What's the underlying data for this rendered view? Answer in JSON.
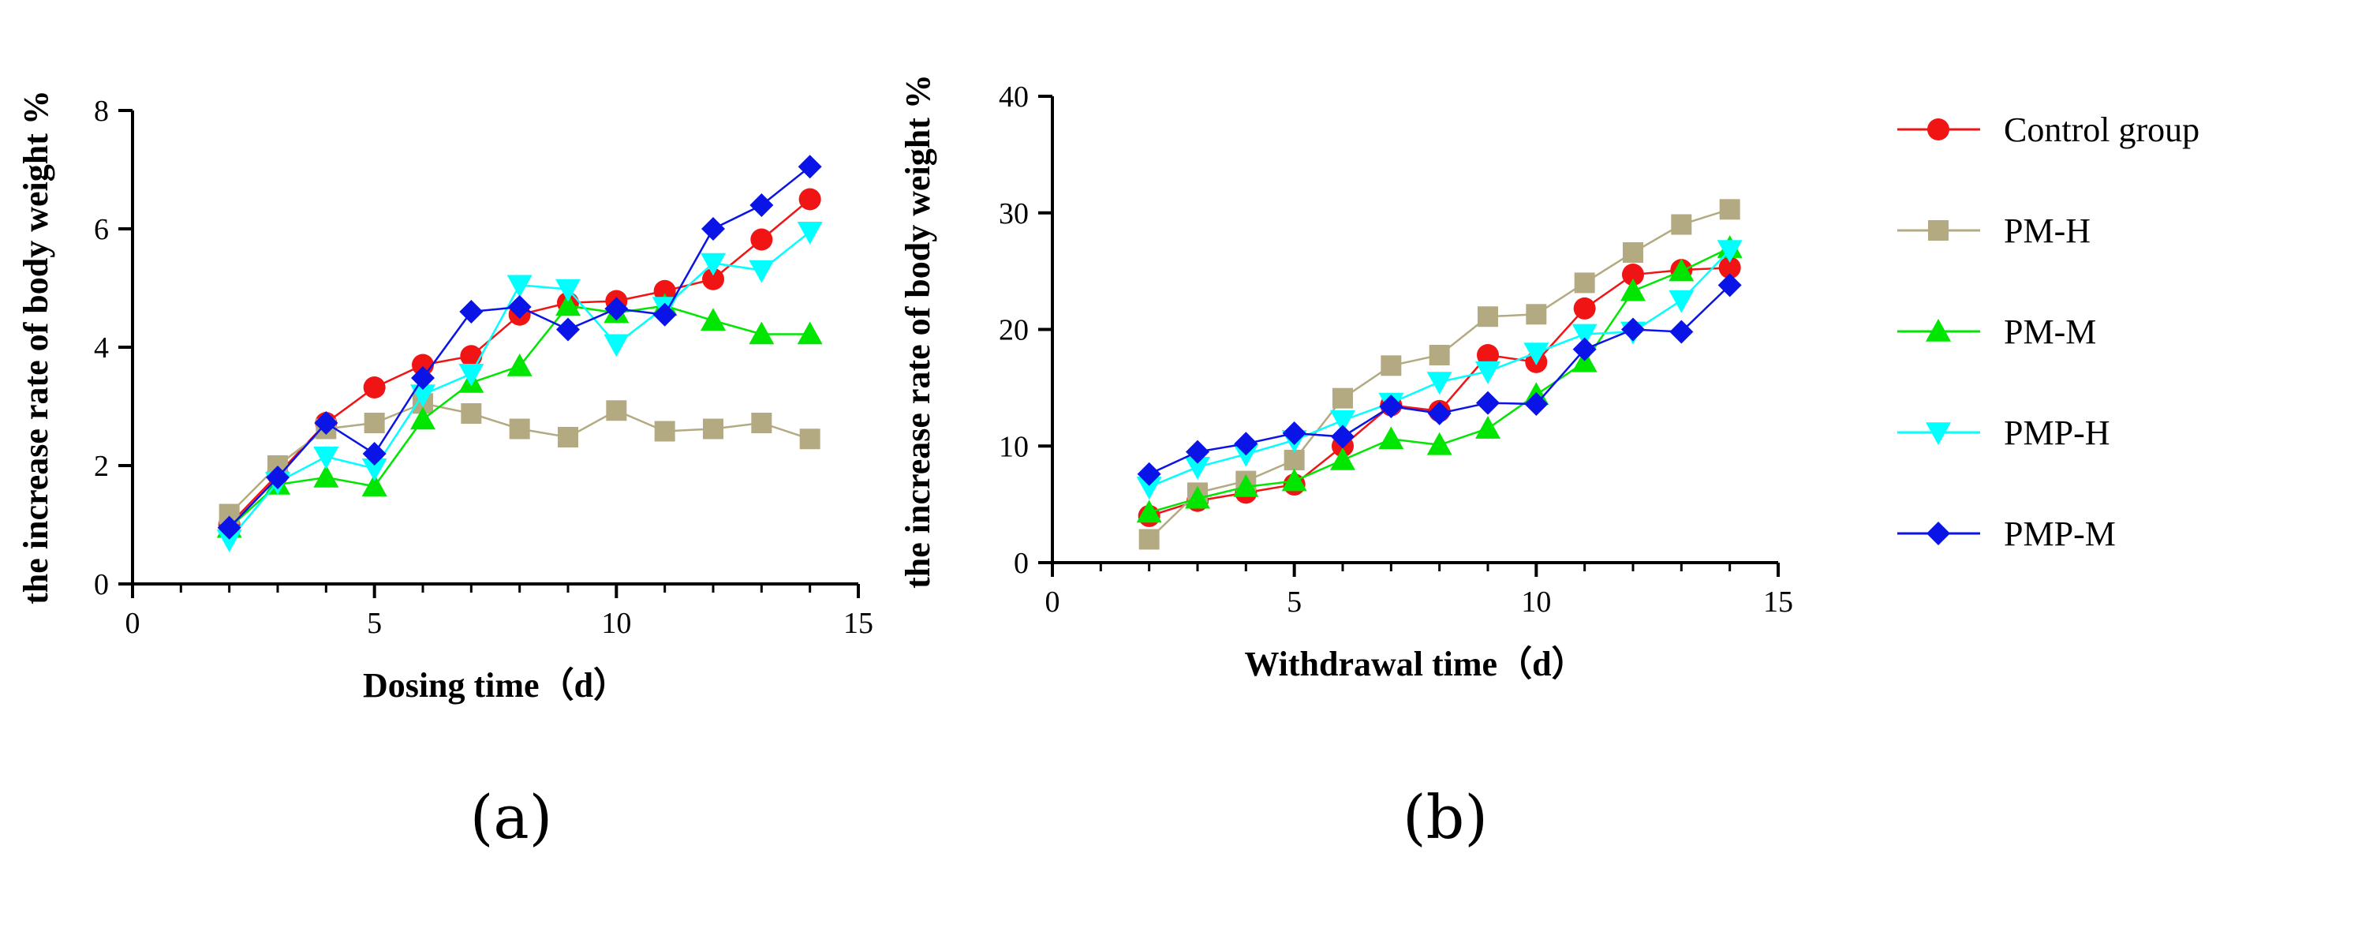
{
  "colors": {
    "control": "#f01414",
    "pmh": "#b4aa82",
    "pmm": "#00e600",
    "pmph": "#00ffff",
    "pmpm": "#0a14e6"
  },
  "legend": [
    {
      "key": "control",
      "label": "Control group",
      "marker": "circle"
    },
    {
      "key": "pmh",
      "label": "PM-H",
      "marker": "square"
    },
    {
      "key": "pmm",
      "label": "PM-M",
      "marker": "triangle-up"
    },
    {
      "key": "pmph",
      "label": "PMP-H",
      "marker": "triangle-down"
    },
    {
      "key": "pmpm",
      "label": "PMP-M",
      "marker": "diamond"
    }
  ],
  "chart_data": [
    {
      "type": "line",
      "panel_label": "(a)",
      "xlabel": "Dosing time（d）",
      "ylabel": "the increase rate of body weight %",
      "xlim": [
        0,
        15
      ],
      "ylim": [
        0,
        8
      ],
      "xticks": [
        "0",
        "5",
        "10",
        "15"
      ],
      "yticks": [
        "0",
        "2",
        "4",
        "6",
        "8"
      ],
      "x": [
        2,
        3,
        4,
        5,
        6,
        7,
        8,
        9,
        10,
        11,
        12,
        13,
        14
      ],
      "series": [
        {
          "key": "control",
          "name": "Control group",
          "values": [
            1.0,
            1.85,
            2.72,
            3.32,
            3.7,
            3.85,
            4.55,
            4.75,
            4.78,
            4.95,
            5.15,
            5.82,
            6.5
          ]
        },
        {
          "key": "pmh",
          "name": "PM-H",
          "values": [
            1.18,
            2.0,
            2.62,
            2.72,
            3.05,
            2.88,
            2.62,
            2.48,
            2.93,
            2.58,
            2.62,
            2.72,
            2.45
          ]
        },
        {
          "key": "pmm",
          "name": "PM-M",
          "values": [
            0.95,
            1.68,
            1.8,
            1.65,
            2.78,
            3.4,
            3.68,
            4.7,
            4.58,
            4.7,
            4.45,
            4.22,
            4.22
          ]
        },
        {
          "key": "pmph",
          "name": "PMP-H",
          "values": [
            0.75,
            1.72,
            2.15,
            1.95,
            3.2,
            3.55,
            5.05,
            4.98,
            4.05,
            4.68,
            5.42,
            5.3,
            5.95
          ]
        },
        {
          "key": "pmpm",
          "name": "PMP-M",
          "values": [
            0.95,
            1.8,
            2.72,
            2.2,
            3.48,
            4.6,
            4.68,
            4.3,
            4.65,
            4.55,
            6.0,
            6.4,
            7.05
          ]
        }
      ]
    },
    {
      "type": "line",
      "panel_label": "(b)",
      "xlabel": "Withdrawal time（d）",
      "ylabel": "the increase rate of body weight %",
      "xlim": [
        0,
        15
      ],
      "ylim": [
        0,
        40
      ],
      "xticks": [
        "0",
        "5",
        "10",
        "15"
      ],
      "yticks": [
        "0",
        "10",
        "20",
        "30",
        "40"
      ],
      "x": [
        2,
        3,
        4,
        5,
        6,
        7,
        8,
        9,
        10,
        11,
        12,
        13,
        14
      ],
      "series": [
        {
          "key": "control",
          "name": "Control group",
          "values": [
            4.0,
            5.3,
            6.0,
            6.7,
            10.0,
            13.5,
            13.0,
            17.8,
            17.2,
            21.8,
            24.7,
            25.1,
            25.3
          ]
        },
        {
          "key": "pmh",
          "name": "PM-H",
          "values": [
            2.0,
            6.0,
            7.0,
            8.8,
            14.1,
            16.9,
            17.8,
            21.1,
            21.3,
            24.0,
            26.6,
            29.0,
            30.3
          ]
        },
        {
          "key": "pmm",
          "name": "PM-M",
          "values": [
            4.3,
            5.5,
            6.5,
            7.0,
            8.8,
            10.6,
            10.1,
            11.5,
            14.4,
            17.2,
            23.3,
            25.0,
            27.0
          ]
        },
        {
          "key": "pmph",
          "name": "PMP-H",
          "values": [
            6.5,
            8.2,
            9.3,
            10.5,
            12.2,
            13.7,
            15.5,
            16.4,
            18.0,
            19.6,
            19.8,
            22.5,
            26.8
          ]
        },
        {
          "key": "pmpm",
          "name": "PMP-M",
          "values": [
            7.6,
            9.5,
            10.2,
            11.1,
            10.8,
            13.4,
            12.8,
            13.7,
            13.6,
            18.3,
            20.0,
            19.8,
            23.8
          ]
        }
      ]
    }
  ]
}
